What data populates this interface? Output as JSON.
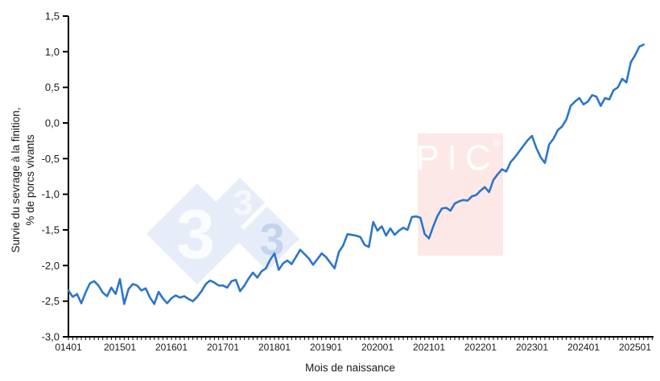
{
  "chart_data": {
    "type": "line",
    "title": "",
    "xlabel": "Mois de naissance",
    "ylabel_line1": "Survie du sevrage à la finition,",
    "ylabel_line2": "% de porcs vivants",
    "grid": false,
    "legend": "none",
    "ylim": [
      -3.0,
      1.5
    ],
    "y_tick_step": 0.5,
    "y_tick_labels": [
      "1,5",
      "1,0",
      "0,5",
      "0,0",
      "-0,5",
      "-1,0",
      "-1,5",
      "-2,0",
      "-2,5",
      "-3,0"
    ],
    "x_tick_labels": [
      "01401",
      "201501",
      "201601",
      "201701",
      "201801",
      "201901",
      "202001",
      "202101",
      "202201",
      "202301",
      "202401",
      "202501"
    ],
    "x_minor_tick_unit": "month",
    "x_start_month": "2014-01",
    "x_end_month": "2025-03",
    "series": [
      {
        "name": "Survie du sevrage à la finition",
        "color": "#2E75C8",
        "values": [
          -2.35,
          -2.44,
          -2.4,
          -2.53,
          -2.38,
          -2.25,
          -2.22,
          -2.28,
          -2.38,
          -2.43,
          -2.31,
          -2.4,
          -2.19,
          -2.54,
          -2.33,
          -2.26,
          -2.28,
          -2.35,
          -2.32,
          -2.45,
          -2.54,
          -2.37,
          -2.46,
          -2.53,
          -2.46,
          -2.42,
          -2.45,
          -2.43,
          -2.47,
          -2.5,
          -2.44,
          -2.36,
          -2.26,
          -2.21,
          -2.24,
          -2.28,
          -2.28,
          -2.31,
          -2.22,
          -2.2,
          -2.36,
          -2.28,
          -2.18,
          -2.1,
          -2.17,
          -2.08,
          -2.04,
          -1.92,
          -1.83,
          -2.06,
          -1.97,
          -1.93,
          -1.98,
          -1.88,
          -1.78,
          -1.84,
          -1.9,
          -1.99,
          -1.91,
          -1.83,
          -1.88,
          -1.96,
          -2.04,
          -1.81,
          -1.72,
          -1.56,
          -1.57,
          -1.58,
          -1.6,
          -1.71,
          -1.74,
          -1.39,
          -1.51,
          -1.45,
          -1.58,
          -1.48,
          -1.57,
          -1.51,
          -1.47,
          -1.5,
          -1.32,
          -1.31,
          -1.33,
          -1.56,
          -1.62,
          -1.45,
          -1.3,
          -1.2,
          -1.19,
          -1.23,
          -1.13,
          -1.1,
          -1.08,
          -1.09,
          -1.03,
          -1.01,
          -0.95,
          -0.9,
          -0.97,
          -0.8,
          -0.72,
          -0.65,
          -0.68,
          -0.55,
          -0.48,
          -0.4,
          -0.32,
          -0.24,
          -0.18,
          -0.35,
          -0.48,
          -0.56,
          -0.3,
          -0.22,
          -0.1,
          -0.05,
          0.05,
          0.24,
          0.3,
          0.35,
          0.26,
          0.3,
          0.39,
          0.37,
          0.24,
          0.35,
          0.33,
          0.46,
          0.5,
          0.62,
          0.57,
          0.85,
          0.95,
          1.07,
          1.1
        ]
      }
    ]
  },
  "watermarks": {
    "diamonds": {
      "fill": "#E7EDF8",
      "items": [
        {
          "text": "3",
          "text_color": "#FBFCFE"
        },
        {
          "text": "3",
          "text_color": "#F5F8FC"
        },
        {
          "text": "3",
          "text_color": "#C5D4EE"
        }
      ]
    },
    "pic": {
      "text": "PIC",
      "registered_mark": "®",
      "bg": "#FCE9E7",
      "fg": "#FFFFFF"
    }
  },
  "colors": {
    "line": "#2E75C8",
    "axis": "#000000",
    "text": "#1a1a1a",
    "background": "#FFFFFF"
  }
}
